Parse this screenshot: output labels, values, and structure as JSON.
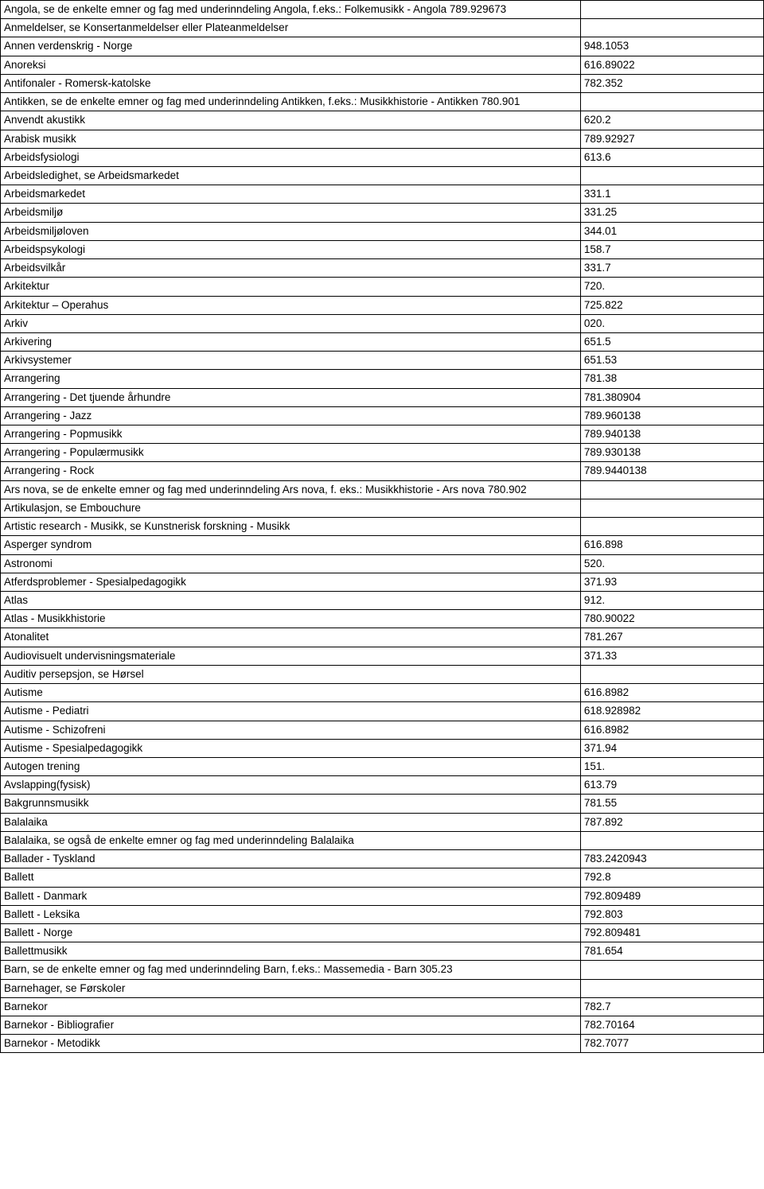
{
  "table": {
    "rows": [
      {
        "left": "Angola, se de enkelte emner og fag med underinndeling Angola, f.eks.: Folkemusikk - Angola  789.929673",
        "right": ""
      },
      {
        "left": "Anmeldelser, se Konsertanmeldelser eller Plateanmeldelser",
        "right": ""
      },
      {
        "left": "Annen verdenskrig - Norge",
        "right": "948.1053"
      },
      {
        "left": "Anoreksi",
        "right": "616.89022"
      },
      {
        "left": "Antifonaler - Romersk-katolske",
        "right": "782.352"
      },
      {
        "left": "Antikken,  se de enkelte emner og fag med underinndeling Antikken, f.eks.: Musikkhistorie - Antikken  780.901",
        "right": ""
      },
      {
        "left": "Anvendt akustikk",
        "right": "620.2"
      },
      {
        "left": "Arabisk musikk",
        "right": "789.92927"
      },
      {
        "left": "Arbeidsfysiologi",
        "right": "613.6"
      },
      {
        "left": "Arbeidsledighet, se Arbeidsmarkedet",
        "right": ""
      },
      {
        "left": "Arbeidsmarkedet",
        "right": "331.1"
      },
      {
        "left": "Arbeidsmiljø",
        "right": "331.25"
      },
      {
        "left": "Arbeidsmiljøloven",
        "right": "344.01"
      },
      {
        "left": "Arbeidspsykologi",
        "right": "158.7"
      },
      {
        "left": "Arbeidsvilkår",
        "right": "331.7"
      },
      {
        "left": "Arkitektur",
        "right": "720."
      },
      {
        "left": "Arkitektur – Operahus",
        "right": "725.822"
      },
      {
        "left": "Arkiv",
        "right": "020."
      },
      {
        "left": "Arkivering",
        "right": "651.5"
      },
      {
        "left": "Arkivsystemer",
        "right": "651.53"
      },
      {
        "left": "Arrangering",
        "right": "781.38"
      },
      {
        "left": "Arrangering - Det tjuende århundre",
        "right": "781.380904"
      },
      {
        "left": "Arrangering - Jazz",
        "right": "789.960138"
      },
      {
        "left": "Arrangering - Popmusikk",
        "right": "789.940138"
      },
      {
        "left": "Arrangering - Populærmusikk",
        "right": "789.930138"
      },
      {
        "left": "Arrangering - Rock",
        "right": "789.9440138"
      },
      {
        "left": "Ars nova, se de enkelte emner og fag med underinndeling Ars nova, f. eks.: Musikkhistorie - Ars nova 780.902",
        "right": ""
      },
      {
        "left": "Artikulasjon, se Embouchure",
        "right": ""
      },
      {
        "left": "Artistic research - Musikk, se Kunstnerisk forskning - Musikk",
        "right": ""
      },
      {
        "left": "Asperger syndrom",
        "right": "616.898"
      },
      {
        "left": "Astronomi",
        "right": "520."
      },
      {
        "left": "Atferdsproblemer - Spesialpedagogikk",
        "right": "371.93"
      },
      {
        "left": "Atlas",
        "right": "912."
      },
      {
        "left": "Atlas - Musikkhistorie",
        "right": "780.90022"
      },
      {
        "left": "Atonalitet",
        "right": "781.267"
      },
      {
        "left": "Audiovisuelt undervisningsmateriale",
        "right": "371.33"
      },
      {
        "left": "Auditiv persepsjon, se Hørsel",
        "right": ""
      },
      {
        "left": "Autisme",
        "right": "616.8982"
      },
      {
        "left": "Autisme - Pediatri",
        "right": "618.928982"
      },
      {
        "left": "Autisme - Schizofreni",
        "right": "616.8982"
      },
      {
        "left": "Autisme - Spesialpedagogikk",
        "right": "371.94"
      },
      {
        "left": "Autogen trening",
        "right": "151."
      },
      {
        "left": "Avslapping(fysisk)",
        "right": "613.79"
      },
      {
        "left": "Bakgrunnsmusikk",
        "right": "781.55"
      },
      {
        "left": "Balalaika",
        "right": "787.892"
      },
      {
        "left": "Balalaika, se også de enkelte emner og fag med underinndeling Balalaika",
        "right": ""
      },
      {
        "left": "Ballader - Tyskland",
        "right": "783.2420943"
      },
      {
        "left": "Ballett",
        "right": "792.8"
      },
      {
        "left": "Ballett - Danmark",
        "right": "792.809489"
      },
      {
        "left": "Ballett - Leksika",
        "right": "792.803"
      },
      {
        "left": "Ballett - Norge",
        "right": "792.809481"
      },
      {
        "left": "Ballettmusikk",
        "right": "781.654"
      },
      {
        "left": "Barn, se de enkelte emner og fag med underinndeling Barn, f.eks.: Massemedia - Barn  305.23",
        "right": ""
      },
      {
        "left": "Barnehager, se Førskoler",
        "right": ""
      },
      {
        "left": "Barnekor",
        "right": "782.7"
      },
      {
        "left": "Barnekor - Bibliografier",
        "right": "782.70164"
      },
      {
        "left": "Barnekor - Metodikk",
        "right": "782.7077"
      }
    ]
  }
}
